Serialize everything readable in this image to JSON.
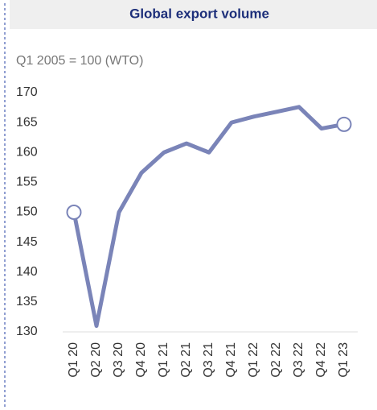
{
  "chart_data": {
    "type": "line",
    "title": "Global export volume",
    "subtitle": "Q1 2005 = 100 (WTO)",
    "categories": [
      "Q1 20",
      "Q2 20",
      "Q3 20",
      "Q4 20",
      "Q1 21",
      "Q2 21",
      "Q3 21",
      "Q4 21",
      "Q1 22",
      "Q2 22",
      "Q3 22",
      "Q4 22",
      "Q1 23"
    ],
    "series": [
      {
        "name": "Global export volume",
        "color": "#7a84b8",
        "values": [
          150,
          131,
          150,
          156.6,
          160,
          161.5,
          160,
          165,
          166,
          166.8,
          167.6,
          164,
          164.7
        ]
      }
    ],
    "ylim": [
      130,
      170
    ],
    "yticks": [
      130,
      135,
      140,
      145,
      150,
      155,
      160,
      165,
      170
    ],
    "end_markers": true,
    "grid": false
  }
}
